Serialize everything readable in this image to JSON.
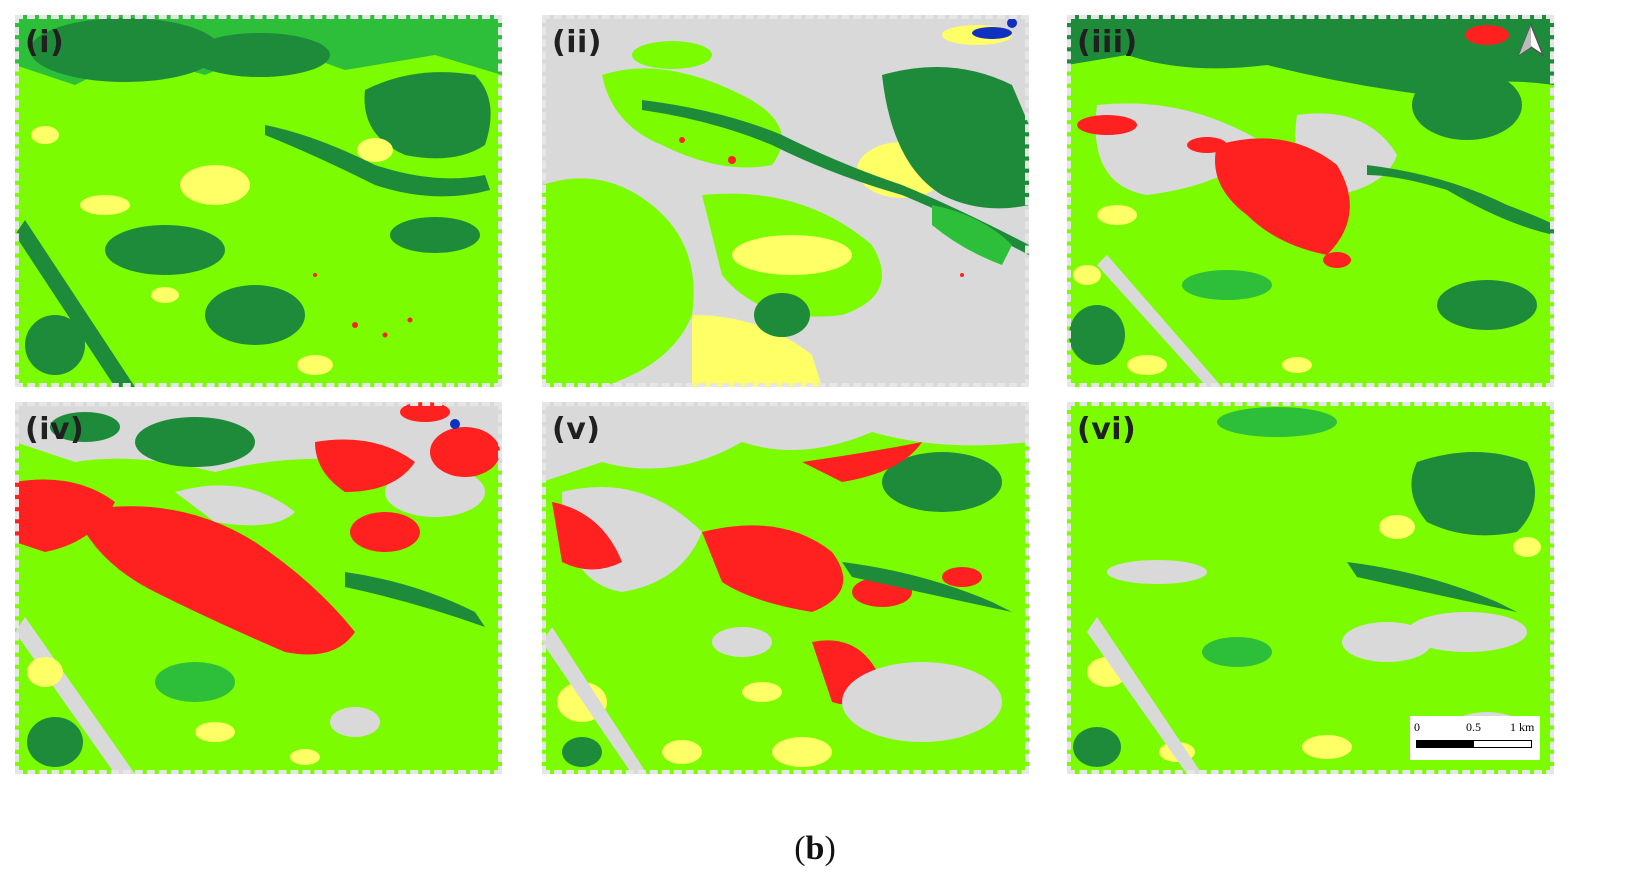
{
  "figure": {
    "caption_open": "(",
    "caption_letter": "b",
    "caption_close": ")"
  },
  "colors": {
    "light_green": "#7CFC00",
    "dark_green": "#1E8B3A",
    "yellow": "#FFFF66",
    "gray": "#D9D9D9",
    "red": "#FF2020",
    "blue": "#1030C0"
  },
  "panels": [
    {
      "label": "(i)"
    },
    {
      "label": "(ii)"
    },
    {
      "label": "(iii)"
    },
    {
      "label": "(iv)"
    },
    {
      "label": "(v)"
    },
    {
      "label": "(vi)"
    }
  ],
  "scale_bar": {
    "tick_0": "0",
    "tick_mid": "0.5",
    "tick_end": "1 km"
  },
  "icons": {
    "north_arrow": "north-arrow-icon"
  }
}
